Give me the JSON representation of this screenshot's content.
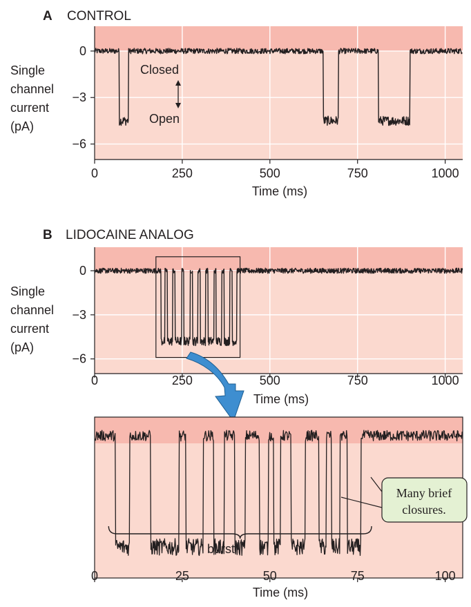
{
  "colors": {
    "plot_bg": "#fbd9cf",
    "closed_band": "#f7b9af",
    "trace": "#231f20",
    "grid": "#ffffff",
    "arrow": "#3e8ed0",
    "note_bg": "#e4f1d3"
  },
  "panels": {
    "a": {
      "letter": "A",
      "title": "CONTROL"
    },
    "b": {
      "letter": "B",
      "title": "LIDOCAINE ANALOG"
    }
  },
  "ylabel_lines": [
    "Single",
    "channel",
    "current",
    "(pA)"
  ],
  "annotations": {
    "closed": "Closed",
    "open": "Open",
    "burst": "burst",
    "note_line1": "Many brief",
    "note_line2": "closures."
  },
  "chart_data": [
    {
      "type": "line",
      "title": "CONTROL",
      "xlabel": "Time (ms)",
      "ylabel": "Single channel current (pA)",
      "xlim": [
        0,
        1050
      ],
      "ylim": [
        -7,
        1.6
      ],
      "xticks": [
        0,
        250,
        500,
        750,
        1000
      ],
      "yticks": [
        0,
        -3,
        -6
      ],
      "ytick_labels": [
        "0",
        "−3",
        "−6"
      ],
      "closed_level": 0,
      "open_level": -4.5,
      "open_intervals_ms": [
        [
          70,
          97
        ],
        [
          652,
          696
        ],
        [
          810,
          900
        ]
      ]
    },
    {
      "type": "line",
      "title": "LIDOCAINE ANALOG",
      "xlabel": "Time (ms)",
      "ylabel": "Single channel current (pA)",
      "xlim": [
        0,
        1050
      ],
      "ylim": [
        -7,
        1.6
      ],
      "xticks": [
        0,
        250,
        500,
        750,
        1000
      ],
      "yticks": [
        0,
        -3,
        -6
      ],
      "ytick_labels": [
        "0",
        "−3",
        "−6"
      ],
      "closed_level": 0,
      "open_level": -4.8,
      "burst_window_ms": [
        175,
        415
      ],
      "open_intervals_ms": [
        [
          190,
          200
        ],
        [
          208,
          222
        ],
        [
          230,
          248
        ],
        [
          255,
          272
        ],
        [
          280,
          294
        ],
        [
          302,
          316
        ],
        [
          324,
          340
        ],
        [
          347,
          362
        ],
        [
          370,
          385
        ],
        [
          393,
          405
        ]
      ]
    },
    {
      "type": "line",
      "title": "",
      "xlabel": "Time (ms)",
      "ylabel": "",
      "xlim": [
        0,
        105
      ],
      "ylim": [
        -4.6,
        0.6
      ],
      "xticks": [
        0,
        25,
        50,
        75,
        100
      ],
      "closed_level": 0,
      "open_level": -3.6,
      "burst_range_ms": [
        4,
        79
      ],
      "open_intervals_ms": [
        [
          6,
          10
        ],
        [
          16,
          24
        ],
        [
          26,
          31
        ],
        [
          34,
          37
        ],
        [
          40,
          43
        ],
        [
          47,
          49.5
        ],
        [
          51,
          53
        ],
        [
          56,
          60
        ],
        [
          64,
          66
        ],
        [
          67.5,
          70
        ],
        [
          72,
          76
        ]
      ]
    }
  ]
}
